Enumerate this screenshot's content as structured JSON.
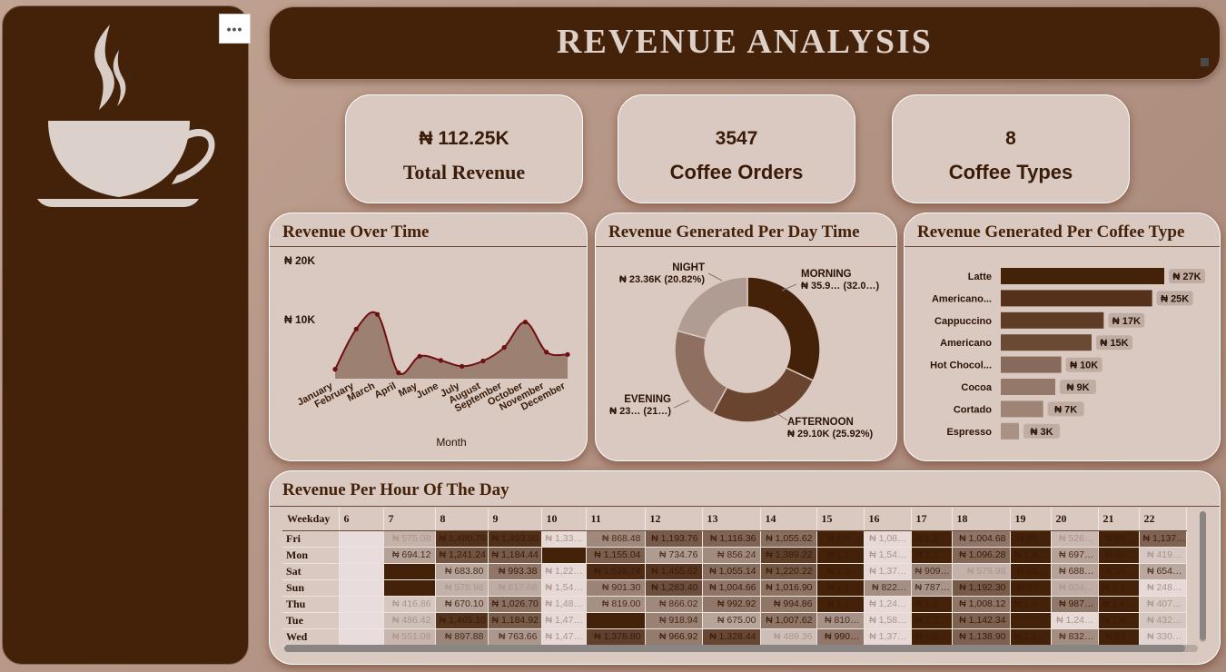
{
  "header": {
    "title": "REVENUE  ANALYSIS"
  },
  "sidebar": {
    "more_options": "•••",
    "logo": "coffee-cup-icon"
  },
  "kpis": [
    {
      "value": "₦ 112.25K",
      "label": "Total Revenue"
    },
    {
      "value": "3547",
      "label": "Coffee Orders"
    },
    {
      "value": "8",
      "label": "Coffee Types"
    }
  ],
  "panels": {
    "revenue_over_time": "Revenue Over Time",
    "revenue_per_day_time": "Revenue Generated Per Day Time",
    "revenue_per_coffee_type": "Revenue Generated  Per Coffee Type",
    "revenue_per_hour": "Revenue Per Hour Of The Day"
  },
  "colors": {
    "dark_brown": "#442109",
    "panel": "#dac9c0",
    "area": "#9c8072",
    "line": "#6e0f10"
  },
  "chart_data": [
    {
      "type": "area",
      "title": "Revenue Over Time",
      "xlabel": "Month",
      "ylabel": "",
      "y_ticks": [
        10000,
        20000
      ],
      "y_tick_labels": [
        "₦ 10K",
        "₦ 20K"
      ],
      "ylim": [
        0,
        20000
      ],
      "grid": false,
      "categories": [
        "January",
        "February",
        "March",
        "April",
        "May",
        "June",
        "July",
        "August",
        "September",
        "October",
        "November",
        "December"
      ],
      "values": [
        1600,
        8400,
        10900,
        1000,
        3800,
        3100,
        2100,
        3000,
        5300,
        9600,
        4500,
        4100
      ]
    },
    {
      "type": "pie",
      "subtype": "donut",
      "title": "Revenue Generated Per Day Time",
      "slices": [
        {
          "name": "MORNING",
          "label": "₦ 35.9… (32.0…)",
          "value": 35.9,
          "color": "#442109"
        },
        {
          "name": "AFTERNOON",
          "label": "₦ 29.10K (25.92%)",
          "value": 29.1,
          "color": "#6b4430"
        },
        {
          "name": "EVENING",
          "label": "₦ 23… (21…)",
          "value": 23.86,
          "color": "#8f6f5f"
        },
        {
          "name": "NIGHT",
          "label": "₦ 23.36K (20.82%)",
          "value": 23.36,
          "color": "#b09c92"
        }
      ]
    },
    {
      "type": "bar",
      "orientation": "horizontal",
      "title": "Revenue Generated  Per Coffee Type",
      "xlim": [
        0,
        27000
      ],
      "categories": [
        "Latte",
        "Americano...",
        "Cappuccino",
        "Americano",
        "Hot Chocol...",
        "Cocoa",
        "Cortado",
        "Espresso"
      ],
      "values": [
        27000,
        25000,
        17000,
        15000,
        10000,
        9000,
        7000,
        3000
      ],
      "data_labels": [
        "₦ 27K",
        "₦ 25K",
        "₦ 17K",
        "₦ 15K",
        "₦ 10K",
        "₦ 9K",
        "₦ 7K",
        "₦ 3K"
      ],
      "colors": [
        "#442109",
        "#55301a",
        "#5f3c26",
        "#6b4a34",
        "#866a5b",
        "#947969",
        "#9e8475",
        "#a99183"
      ]
    },
    {
      "type": "heatmap",
      "title": "Revenue Per Hour Of The Day",
      "row_header": "Weekday",
      "columns": [
        "6",
        "7",
        "8",
        "9",
        "10",
        "11",
        "12",
        "13",
        "14",
        "15",
        "16",
        "17",
        "18",
        "19",
        "20",
        "21",
        "22"
      ],
      "rows": [
        "Fri",
        "Mon",
        "Sat",
        "Sun",
        "Thu",
        "Tue",
        "Wed"
      ],
      "cells": [
        [
          "",
          "₦ 575.08",
          "₦ 1,480.76",
          "₦ 1,493.50",
          "₦ 1,33…",
          "₦ 868.48",
          "₦ 1,193.76",
          "₦ 1,116.36",
          "₦ 1,055.62",
          "₦ 1,0…",
          "₦ 1,08…",
          "₦ 1,3…",
          "₦ 1,004.68",
          "₦ 89…",
          "₦ 526…",
          "₦ 55…",
          "₦ 1,137…"
        ],
        [
          "",
          "₦ 694.12",
          "₦ 1,241.24",
          "₦ 1,184.44",
          "",
          "₦ 1,155.04",
          "₦ 734.76",
          "₦ 856.24",
          "₦ 1,389.22",
          "₦ 1,1…",
          "₦ 1,54…",
          "₦ 1,1…",
          "₦ 1,096.28",
          "₦ 1,4…",
          "₦ 697…",
          "₦ 86…",
          "₦ 419…"
        ],
        [
          "",
          "",
          "₦ 683.80",
          "₦ 993.38",
          "₦ 1,22…",
          "₦ 1,536.74",
          "₦ 1,455.62",
          "₦ 1,055.14",
          "₦ 1,220.22",
          "₦ 1,2…",
          "₦ 1,37…",
          "₦ 909…",
          "₦ 579.98",
          "₦ 63…",
          "₦ 688…",
          "₦ 39…",
          "₦ 654…"
        ],
        [
          "",
          "",
          "₦ 578.98",
          "₦ 617.68",
          "₦ 1,54…",
          "₦ 901.30",
          "₦ 1,283.40",
          "₦ 1,004.66",
          "₦ 1,016.90",
          "₦ 1,1…",
          "₦ 822…",
          "₦ 787…",
          "₦ 1,192.30",
          "₦ 37…",
          "₦ 604…",
          "₦ 1,1…",
          "₦ 248…"
        ],
        [
          "",
          "₦ 416.86",
          "₦ 670.10",
          "₦ 1,026.70",
          "₦ 1,48…",
          "₦ 819.00",
          "₦ 866.02",
          "₦ 992.92",
          "₦ 994.86",
          "₦ 1,1…",
          "₦ 1,24…",
          "₦ 1,1…",
          "₦ 1,008.12",
          "₦ 1,4…",
          "₦ 987…",
          "₦ 1,4…",
          "₦ 407…"
        ],
        [
          "",
          "₦ 486.42",
          "₦ 1,465.10",
          "₦ 1,184.92",
          "₦ 1,47…",
          "",
          "₦ 918.94",
          "₦ 675.00",
          "₦ 1,007.62",
          "₦ 810…",
          "₦ 1,58…",
          "₦ 1,2…",
          "₦ 1,142.34",
          "",
          "₦ 1,24…",
          "₦ 1,0…",
          "₦ 432…"
        ],
        [
          "",
          "₦ 551.08",
          "₦ 897.88",
          "₦ 763.66",
          "₦ 1,47…",
          "₦ 1,378.80",
          "₦ 966.92",
          "₦ 1,328.44",
          "₦ 489.36",
          "₦ 990…",
          "₦ 1,37…",
          "₦ 1,0…",
          "₦ 1,138.90",
          "₦ 1,1…",
          "₦ 832…",
          "₦ 97…",
          "₦ 330…"
        ]
      ]
    }
  ]
}
